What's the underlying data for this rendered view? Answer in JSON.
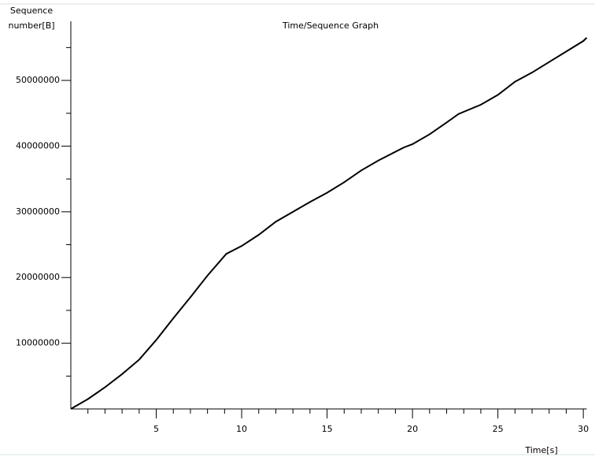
{
  "chart_data": {
    "type": "line",
    "title": "Time/Sequence Graph",
    "y_label": [
      "Sequence",
      "number[B]"
    ],
    "x_label": "Time[s]",
    "xlim": [
      0,
      30.2
    ],
    "xticks": [
      5,
      10,
      15,
      20,
      25,
      30
    ],
    "xminorticks": [
      1,
      2,
      3,
      4,
      6,
      7,
      8,
      9,
      11,
      12,
      13,
      14,
      16,
      17,
      18,
      19,
      21,
      22,
      23,
      24,
      26,
      27,
      28,
      29
    ],
    "ylim": [
      0,
      59000000
    ],
    "yticks": [
      10000000,
      20000000,
      30000000,
      40000000,
      50000000
    ],
    "yminorticks": [
      5000000,
      15000000,
      25000000,
      35000000,
      45000000,
      55000000
    ],
    "series": [
      {
        "color": "#000000",
        "x": [
          0,
          1,
          2,
          3,
          4,
          5,
          6,
          7,
          8,
          9.1,
          10,
          11,
          12,
          12.6,
          14,
          15,
          16,
          17,
          18,
          19.5,
          20,
          21,
          22,
          22.7,
          24,
          25,
          26,
          27,
          28,
          29,
          30,
          30.2
        ],
        "values": [
          0,
          1500000,
          3300000,
          5300000,
          7500000,
          10500000,
          13800000,
          17000000,
          20300000,
          23600000,
          24800000,
          26500000,
          28500000,
          29400000,
          31500000,
          32900000,
          34500000,
          36300000,
          37800000,
          39800000,
          40300000,
          41800000,
          43600000,
          44900000,
          46300000,
          47800000,
          49800000,
          51200000,
          52800000,
          54400000,
          56000000,
          56500000
        ]
      }
    ]
  }
}
